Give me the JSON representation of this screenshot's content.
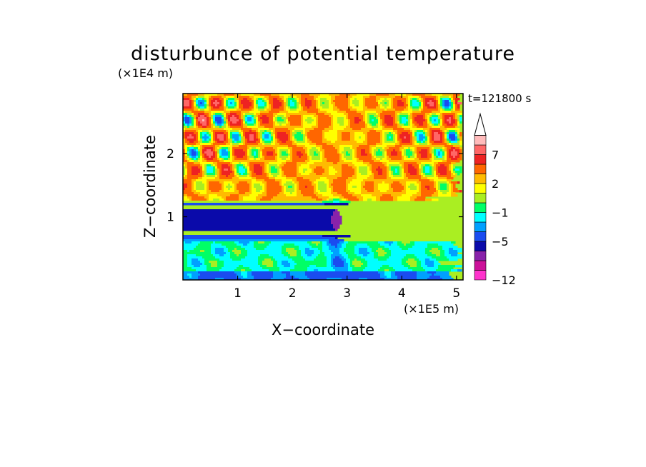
{
  "chart_data": {
    "type": "heatmap",
    "title": "disturbunce of potential temperature",
    "xlabel": "X−coordinate",
    "ylabel": "Z−coordinate",
    "x_scale_label": "(×1E5 m)",
    "y_scale_label": "(×1E4 m)",
    "time_label": "t=121800 s",
    "xlim": [
      0,
      5.12
    ],
    "ylim": [
      0,
      2.95
    ],
    "x_ticks": [
      {
        "value": 1,
        "label": "1"
      },
      {
        "value": 2,
        "label": "2"
      },
      {
        "value": 3,
        "label": "3"
      },
      {
        "value": 4,
        "label": "4"
      },
      {
        "value": 5,
        "label": "5"
      }
    ],
    "y_ticks": [
      {
        "value": 1,
        "label": "1"
      },
      {
        "value": 2,
        "label": "2"
      }
    ],
    "colorbar": {
      "levels": [
        -12,
        -11,
        -9,
        -7,
        -5,
        -3,
        -2,
        -1,
        0,
        1,
        2,
        3,
        5,
        7,
        9,
        11
      ],
      "colors": [
        "#ff33cc",
        "#cc1199",
        "#8822aa",
        "#0a0aaa",
        "#1a4cf0",
        "#00a0ff",
        "#00ffff",
        "#00ff66",
        "#aaee22",
        "#ffff00",
        "#ffbb00",
        "#ff6600",
        "#ee2222",
        "#ff6666",
        "#ffbbbb"
      ],
      "extend": "max",
      "tick_labels": [
        {
          "value": 7,
          "label": "7"
        },
        {
          "value": 2,
          "label": "2"
        },
        {
          "value": -1,
          "label": "−1"
        },
        {
          "value": -5,
          "label": "−5"
        },
        {
          "value": -12,
          "label": "−12"
        }
      ]
    },
    "field_structure": {
      "near_surface_layer_z": [
        0,
        0.6
      ],
      "near_surface_value": -1,
      "cold_band_z": [
        0.7,
        1.2
      ],
      "cold_band_value": -5,
      "upper_band_z": [
        1.3,
        2.95
      ],
      "upper_band_value": 2,
      "wave_source_x": 2.8
    }
  }
}
